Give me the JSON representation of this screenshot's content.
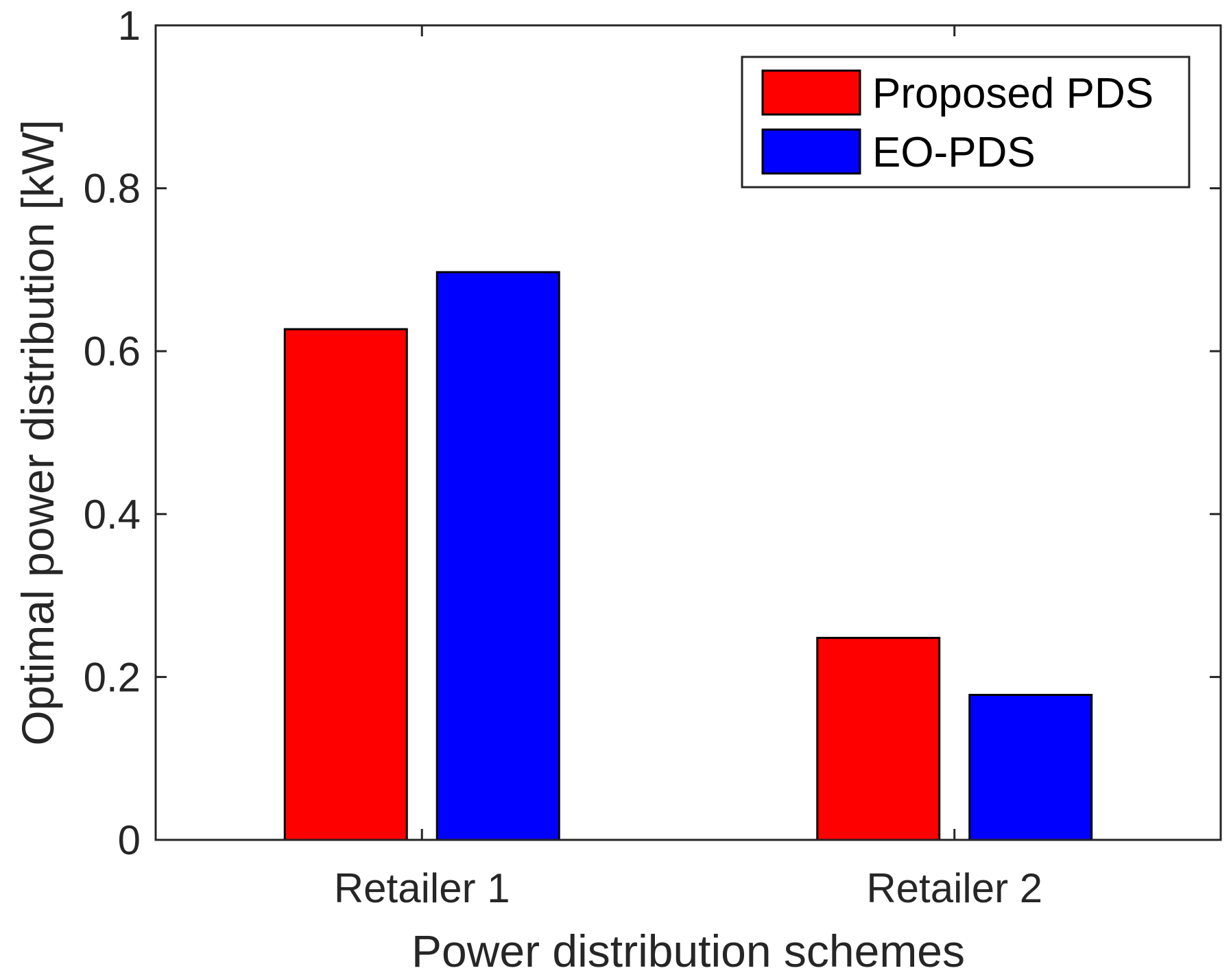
{
  "chart_data": {
    "type": "bar",
    "categories": [
      "Retailer 1",
      "Retailer 2"
    ],
    "series": [
      {
        "name": "Proposed PDS",
        "values": [
          0.627,
          0.248
        ],
        "color": "#ff0000"
      },
      {
        "name": "EO-PDS",
        "values": [
          0.697,
          0.178
        ],
        "color": "#0000ff"
      }
    ],
    "xlabel": "Power distribution schemes",
    "ylabel": "Optimal power distribution [kW]",
    "ylim": [
      0,
      1
    ],
    "yticks": [
      0,
      0.2,
      0.4,
      0.6,
      0.8,
      1
    ],
    "ytick_labels": [
      "0",
      "0.2",
      "0.4",
      "0.6",
      "0.8",
      "1"
    ],
    "grid": false,
    "legend_position": "top-right"
  }
}
